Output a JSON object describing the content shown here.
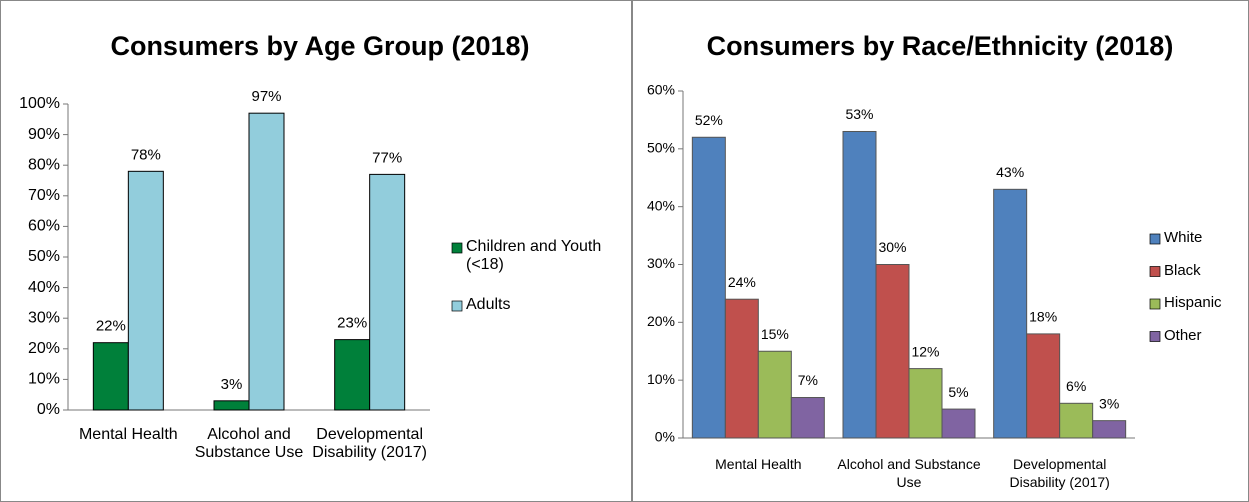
{
  "chart_data": [
    {
      "type": "bar",
      "title": "Consumers by Age Group (2018)",
      "categories": [
        "Mental Health",
        "Alcohol and Substance Use",
        "Developmental Disability (2017)"
      ],
      "series": [
        {
          "name": "Children and Youth (<18)",
          "color": "#00803a",
          "values": [
            22,
            3,
            23
          ],
          "value_labels": [
            "22%",
            "3%",
            "23%"
          ]
        },
        {
          "name": "Adults",
          "color": "#92cddc",
          "values": [
            78,
            97,
            77
          ],
          "value_labels": [
            "78%",
            "97%",
            "77%"
          ]
        }
      ],
      "ylim": [
        0,
        100
      ],
      "yticks": [
        {
          "value": 0,
          "label": "0%"
        },
        {
          "value": 10,
          "label": "10%"
        },
        {
          "value": 20,
          "label": "20%"
        },
        {
          "value": 30,
          "label": "30%"
        },
        {
          "value": 40,
          "label": "40%"
        },
        {
          "value": 50,
          "label": "50%"
        },
        {
          "value": 60,
          "label": "60%"
        },
        {
          "value": 70,
          "label": "70%"
        },
        {
          "value": 80,
          "label": "80%"
        },
        {
          "value": 90,
          "label": "90%"
        },
        {
          "value": 100,
          "label": "100%"
        }
      ],
      "legend": "right",
      "grid": false
    },
    {
      "type": "bar",
      "title": "Consumers by Race/Ethnicity (2018)",
      "categories": [
        "Mental Health",
        "Alcohol and Substance Use",
        "Developmental Disability (2017)"
      ],
      "series": [
        {
          "name": "White",
          "color": "#4f81bd",
          "values": [
            52,
            53,
            43
          ],
          "value_labels": [
            "52%",
            "53%",
            "43%"
          ]
        },
        {
          "name": "Black",
          "color": "#c0504d",
          "values": [
            24,
            30,
            18
          ],
          "value_labels": [
            "24%",
            "30%",
            "18%"
          ]
        },
        {
          "name": "Hispanic",
          "color": "#9bbb59",
          "values": [
            15,
            12,
            6
          ],
          "value_labels": [
            "15%",
            "12%",
            "6%"
          ]
        },
        {
          "name": "Other",
          "color": "#8064a2",
          "values": [
            7,
            5,
            3
          ],
          "value_labels": [
            "7%",
            "5%",
            "3%"
          ]
        }
      ],
      "ylim": [
        0,
        60
      ],
      "yticks": [
        {
          "value": 0,
          "label": "0%"
        },
        {
          "value": 10,
          "label": "10%"
        },
        {
          "value": 20,
          "label": "20%"
        },
        {
          "value": 30,
          "label": "30%"
        },
        {
          "value": 40,
          "label": "40%"
        },
        {
          "value": 50,
          "label": "50%"
        },
        {
          "value": 60,
          "label": "60%"
        }
      ],
      "legend": "right",
      "grid": false
    }
  ]
}
